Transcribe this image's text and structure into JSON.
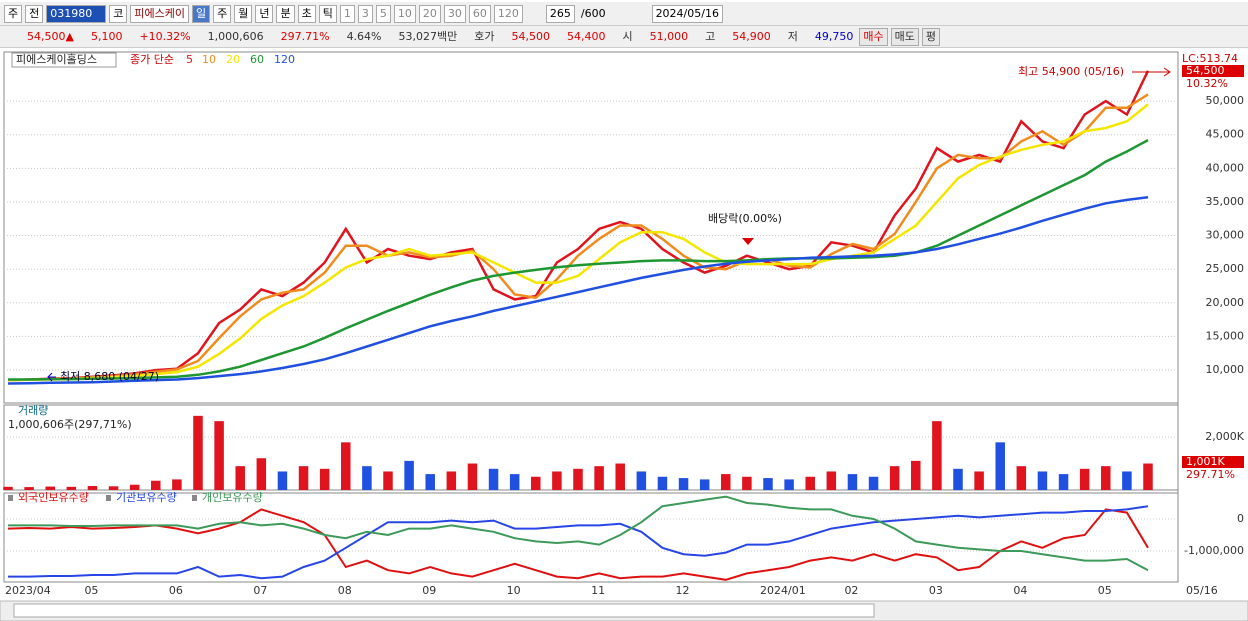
{
  "toolbar": {
    "left": [
      "주",
      "전"
    ],
    "code": "031980",
    "market": "코",
    "name": "피에스케이",
    "periods": [
      "일",
      "주",
      "월",
      "년",
      "분",
      "초",
      "틱"
    ],
    "units": [
      "1",
      "3",
      "5",
      "10",
      "20",
      "30",
      "60",
      "120"
    ],
    "count": "265",
    "total": "/600",
    "date": "2024/05/16"
  },
  "quote": {
    "items": [
      "54,500▲",
      "5,100",
      "+10.32%",
      "1,000,606",
      "297.71%",
      "4.64%",
      "53,027백만",
      "호가",
      "54,500",
      "54,400",
      "시",
      "51,000",
      "고",
      "54,900",
      "저",
      "49,750"
    ],
    "buttons": [
      "매수",
      "매도",
      "평"
    ]
  },
  "chart_data": [
    {
      "type": "line",
      "title": "피에스케이홀딩스",
      "legend_prefix": "종가 단순",
      "ylim": [
        5100,
        57300
      ],
      "yticks": [
        {
          "value": 10000,
          "label": "10,000"
        },
        {
          "value": 15000,
          "label": "15,000"
        },
        {
          "value": 20000,
          "label": "20,000"
        },
        {
          "value": 25000,
          "label": "25,000"
        },
        {
          "value": 30000,
          "label": "30,000"
        },
        {
          "value": 35000,
          "label": "35,000"
        },
        {
          "value": 40000,
          "label": "40,000"
        },
        {
          "value": 45000,
          "label": "45,000"
        },
        {
          "value": 50000,
          "label": "50,000"
        }
      ],
      "grid": true,
      "annotations": [
        "최고 54,900 (05/16)",
        "최저 8,680 (04/27)",
        "배당락(0.00%)"
      ],
      "axis_labels": [
        "LC:513.74",
        "54,500",
        "10.32%"
      ],
      "series": [
        {
          "name": "5",
          "color": "#e0141e",
          "values": [
            8500,
            8600,
            8700,
            8800,
            9000,
            9200,
            9500,
            10000,
            10200,
            12500,
            17000,
            19000,
            22000,
            21000,
            23000,
            26000,
            31000,
            26000,
            28000,
            27000,
            26500,
            27500,
            28000,
            22000,
            20500,
            21000,
            26000,
            28000,
            31000,
            32000,
            31000,
            28000,
            26000,
            24500,
            25500,
            27000,
            26000,
            25000,
            25500,
            29000,
            28500,
            27500,
            33000,
            37000,
            43000,
            41000,
            42000,
            41000,
            47000,
            44000,
            43000,
            48000,
            50000,
            48000,
            54500
          ]
        },
        {
          "name": "10",
          "color": "#f08c1e",
          "values": [
            8500,
            8550,
            8650,
            8750,
            8900,
            9100,
            9350,
            9750,
            10100,
            11350,
            14750,
            18000,
            20500,
            21500,
            22000,
            24500,
            28500,
            28500,
            27000,
            27500,
            26750,
            27000,
            27750,
            25000,
            21250,
            20750,
            23500,
            27000,
            29500,
            31500,
            31500,
            29500,
            27000,
            25250,
            25000,
            26250,
            26500,
            25500,
            25250,
            27250,
            28750,
            28000,
            30250,
            35000,
            40000,
            42000,
            41500,
            41500,
            44000,
            45500,
            43500,
            45500,
            49000,
            49000,
            51000
          ]
        },
        {
          "name": "20",
          "color": "#f5e600",
          "values": [
            8500,
            8550,
            8600,
            8650,
            8800,
            8950,
            9100,
            9400,
            9700,
            10500,
            12400,
            14700,
            17600,
            19600,
            21000,
            23000,
            25250,
            26500,
            27000,
            28000,
            27000,
            27250,
            27500,
            26000,
            24500,
            23000,
            23000,
            24000,
            26500,
            29000,
            30500,
            30500,
            29500,
            27500,
            26000,
            25750,
            25750,
            25750,
            25750,
            26500,
            27000,
            27500,
            29500,
            31500,
            35000,
            38500,
            40500,
            41750,
            42750,
            43500,
            44000,
            45500,
            46000,
            47000,
            49500
          ]
        },
        {
          "name": "60",
          "color": "#1e9632",
          "values": [
            8600,
            8600,
            8650,
            8650,
            8700,
            8750,
            8800,
            8900,
            9000,
            9300,
            9800,
            10500,
            11500,
            12500,
            13500,
            14800,
            16200,
            17500,
            18800,
            20000,
            21200,
            22300,
            23300,
            24000,
            24500,
            24900,
            25300,
            25600,
            25800,
            26000,
            26200,
            26300,
            26300,
            26200,
            26200,
            26300,
            26500,
            26600,
            26600,
            26600,
            26700,
            26800,
            27000,
            27500,
            28500,
            30000,
            31500,
            33000,
            34500,
            36000,
            37500,
            39000,
            41000,
            42500,
            44200
          ]
        },
        {
          "name": "120",
          "color": "#2050e0",
          "values": [
            8000,
            8050,
            8100,
            8150,
            8200,
            8300,
            8400,
            8500,
            8600,
            8800,
            9100,
            9400,
            9800,
            10300,
            10900,
            11600,
            12500,
            13500,
            14500,
            15500,
            16500,
            17300,
            18000,
            18800,
            19500,
            20200,
            20900,
            21600,
            22300,
            23000,
            23700,
            24300,
            24900,
            25400,
            25800,
            26100,
            26300,
            26500,
            26700,
            26800,
            26900,
            27000,
            27200,
            27500,
            28000,
            28700,
            29500,
            30300,
            31200,
            32200,
            33100,
            34000,
            34800,
            35300,
            35700
          ]
        }
      ]
    },
    {
      "type": "bar",
      "title": "거래량",
      "subtitle": "1,000,606주(297,71%)",
      "ylim": [
        0,
        3210000
      ],
      "yticks": [
        {
          "value": 2000000,
          "label": "2,000K"
        }
      ],
      "axis_labels": [
        "1,001K",
        "297.71%"
      ],
      "colors": [
        "#e0141e",
        "#2050e0"
      ],
      "values": [
        120000,
        110000,
        130000,
        120000,
        150000,
        140000,
        200000,
        350000,
        400000,
        2800000,
        2600000,
        900000,
        1200000,
        700000,
        900000,
        800000,
        1800000,
        900000,
        700000,
        1100000,
        600000,
        700000,
        1000000,
        800000,
        600000,
        500000,
        700000,
        800000,
        900000,
        1000000,
        700000,
        500000,
        450000,
        400000,
        600000,
        500000,
        450000,
        400000,
        500000,
        700000,
        600000,
        500000,
        900000,
        1100000,
        2600000,
        800000,
        700000,
        1800000,
        900000,
        700000,
        600000,
        800000,
        900000,
        700000,
        1000606
      ]
    },
    {
      "type": "line",
      "ylim": [
        -1968750,
        812500
      ],
      "yticks": [
        0,
        {
          "value": -1000000,
          "label": "-1,000,000"
        }
      ],
      "categories": [
        "2023/04",
        null,
        null,
        null,
        "05",
        null,
        null,
        null,
        "06",
        null,
        null,
        null,
        "07",
        null,
        null,
        null,
        "08",
        null,
        null,
        null,
        "09",
        null,
        null,
        null,
        "10",
        null,
        null,
        null,
        "11",
        null,
        null,
        null,
        "12",
        null,
        null,
        null,
        "2024/01",
        null,
        null,
        null,
        "02",
        null,
        null,
        null,
        "03",
        null,
        null,
        null,
        "04",
        null,
        null,
        null,
        "05",
        null,
        null
      ],
      "last_label": "05/16",
      "series": [
        {
          "name": "외국인보유수량",
          "color": "#e01010",
          "values": [
            -300000,
            -280000,
            -300000,
            -250000,
            -300000,
            -280000,
            -250000,
            -200000,
            -300000,
            -450000,
            -300000,
            -100000,
            300000,
            100000,
            -100000,
            -500000,
            -1500000,
            -1300000,
            -1600000,
            -1700000,
            -1500000,
            -1700000,
            -1800000,
            -1600000,
            -1400000,
            -1600000,
            -1800000,
            -1850000,
            -1700000,
            -1850000,
            -1800000,
            -1800000,
            -1700000,
            -1800000,
            -1900000,
            -1700000,
            -1600000,
            -1500000,
            -1300000,
            -1200000,
            -1300000,
            -1100000,
            -1300000,
            -1100000,
            -1200000,
            -1600000,
            -1500000,
            -1000000,
            -700000,
            -900000,
            -600000,
            -500000,
            300000,
            200000,
            -900000
          ]
        },
        {
          "name": "기관보유수량",
          "color": "#2846e6",
          "values": [
            -1800000,
            -1800000,
            -1780000,
            -1780000,
            -1750000,
            -1750000,
            -1700000,
            -1700000,
            -1700000,
            -1500000,
            -1800000,
            -1750000,
            -1850000,
            -1800000,
            -1500000,
            -1300000,
            -900000,
            -500000,
            -100000,
            -100000,
            -100000,
            -50000,
            -100000,
            -50000,
            -300000,
            -300000,
            -250000,
            -200000,
            -200000,
            -150000,
            -400000,
            -900000,
            -1100000,
            -1150000,
            -1050000,
            -800000,
            -800000,
            -700000,
            -500000,
            -300000,
            -200000,
            -100000,
            -50000,
            0,
            50000,
            100000,
            50000,
            100000,
            150000,
            200000,
            200000,
            250000,
            250000,
            300000,
            400000
          ]
        },
        {
          "name": "개인보유수량",
          "color": "#3c9a5a",
          "values": [
            -200000,
            -200000,
            -200000,
            -220000,
            -220000,
            -200000,
            -200000,
            -200000,
            -200000,
            -300000,
            -150000,
            -100000,
            -200000,
            -150000,
            -300000,
            -500000,
            -600000,
            -400000,
            -500000,
            -300000,
            -300000,
            -200000,
            -300000,
            -400000,
            -600000,
            -700000,
            -750000,
            -700000,
            -800000,
            -500000,
            -100000,
            400000,
            500000,
            600000,
            700000,
            500000,
            450000,
            350000,
            300000,
            300000,
            100000,
            0,
            -300000,
            -700000,
            -800000,
            -900000,
            -950000,
            -1000000,
            -1000000,
            -1100000,
            -1200000,
            -1300000,
            -1300000,
            -1250000,
            -1600000
          ]
        }
      ]
    }
  ]
}
